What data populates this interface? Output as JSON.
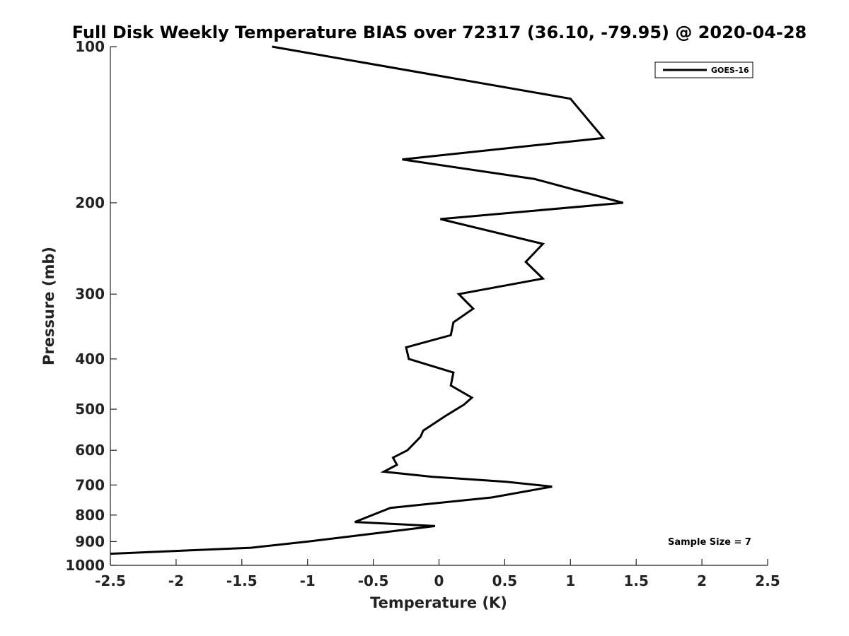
{
  "chart_data": {
    "type": "line",
    "title": "Full Disk Weekly Temperature BIAS over 72317 (36.10, -79.95) @ 2020-04-28",
    "xlabel": "Temperature (K)",
    "ylabel": "Pressure (mb)",
    "xlim": [
      -2.5,
      2.5
    ],
    "ylim": [
      100,
      1000
    ],
    "yscale": "log",
    "yreversed": true,
    "xticks": [
      -2.5,
      -2,
      -1.5,
      -1,
      -0.5,
      0,
      0.5,
      1,
      1.5,
      2,
      2.5
    ],
    "xtick_labels": [
      "-2.5",
      "-2",
      "-1.5",
      "-1",
      "-0.5",
      "0",
      "0.5",
      "1",
      "1.5",
      "2",
      "2.5"
    ],
    "yticks": [
      100,
      200,
      300,
      400,
      500,
      600,
      700,
      800,
      900,
      1000
    ],
    "ytick_labels": [
      "100",
      "200",
      "300",
      "400",
      "500",
      "600",
      "700",
      "800",
      "900",
      "1000"
    ],
    "grid": false,
    "legend_position": "top-right",
    "series": [
      {
        "name": "GOES-16",
        "color": "#000000",
        "points": [
          {
            "t": -1.27,
            "p": 100
          },
          {
            "t": 1.0,
            "p": 126
          },
          {
            "t": 1.25,
            "p": 150
          },
          {
            "t": -0.28,
            "p": 165
          },
          {
            "t": 0.73,
            "p": 180
          },
          {
            "t": 1.4,
            "p": 200
          },
          {
            "t": 0.01,
            "p": 215
          },
          {
            "t": 0.79,
            "p": 240
          },
          {
            "t": 0.66,
            "p": 260
          },
          {
            "t": 0.79,
            "p": 280
          },
          {
            "t": 0.15,
            "p": 300
          },
          {
            "t": 0.26,
            "p": 320
          },
          {
            "t": 0.11,
            "p": 340
          },
          {
            "t": 0.09,
            "p": 360
          },
          {
            "t": -0.25,
            "p": 380
          },
          {
            "t": -0.23,
            "p": 400
          },
          {
            "t": 0.11,
            "p": 425
          },
          {
            "t": 0.09,
            "p": 450
          },
          {
            "t": 0.25,
            "p": 475
          },
          {
            "t": 0.19,
            "p": 490
          },
          {
            "t": 0.05,
            "p": 515
          },
          {
            "t": -0.12,
            "p": 550
          },
          {
            "t": -0.14,
            "p": 565
          },
          {
            "t": -0.24,
            "p": 600
          },
          {
            "t": -0.35,
            "p": 620
          },
          {
            "t": -0.32,
            "p": 640
          },
          {
            "t": -0.42,
            "p": 660
          },
          {
            "t": -0.05,
            "p": 675
          },
          {
            "t": 0.51,
            "p": 690
          },
          {
            "t": 0.86,
            "p": 705
          },
          {
            "t": 0.4,
            "p": 740
          },
          {
            "t": -0.37,
            "p": 775
          },
          {
            "t": -0.64,
            "p": 825
          },
          {
            "t": -0.03,
            "p": 840
          },
          {
            "t": -0.6,
            "p": 875
          },
          {
            "t": -1.0,
            "p": 900
          },
          {
            "t": -1.43,
            "p": 925
          },
          {
            "t": -2.5,
            "p": 950
          }
        ]
      }
    ],
    "annotation": "Sample Size = 7"
  }
}
